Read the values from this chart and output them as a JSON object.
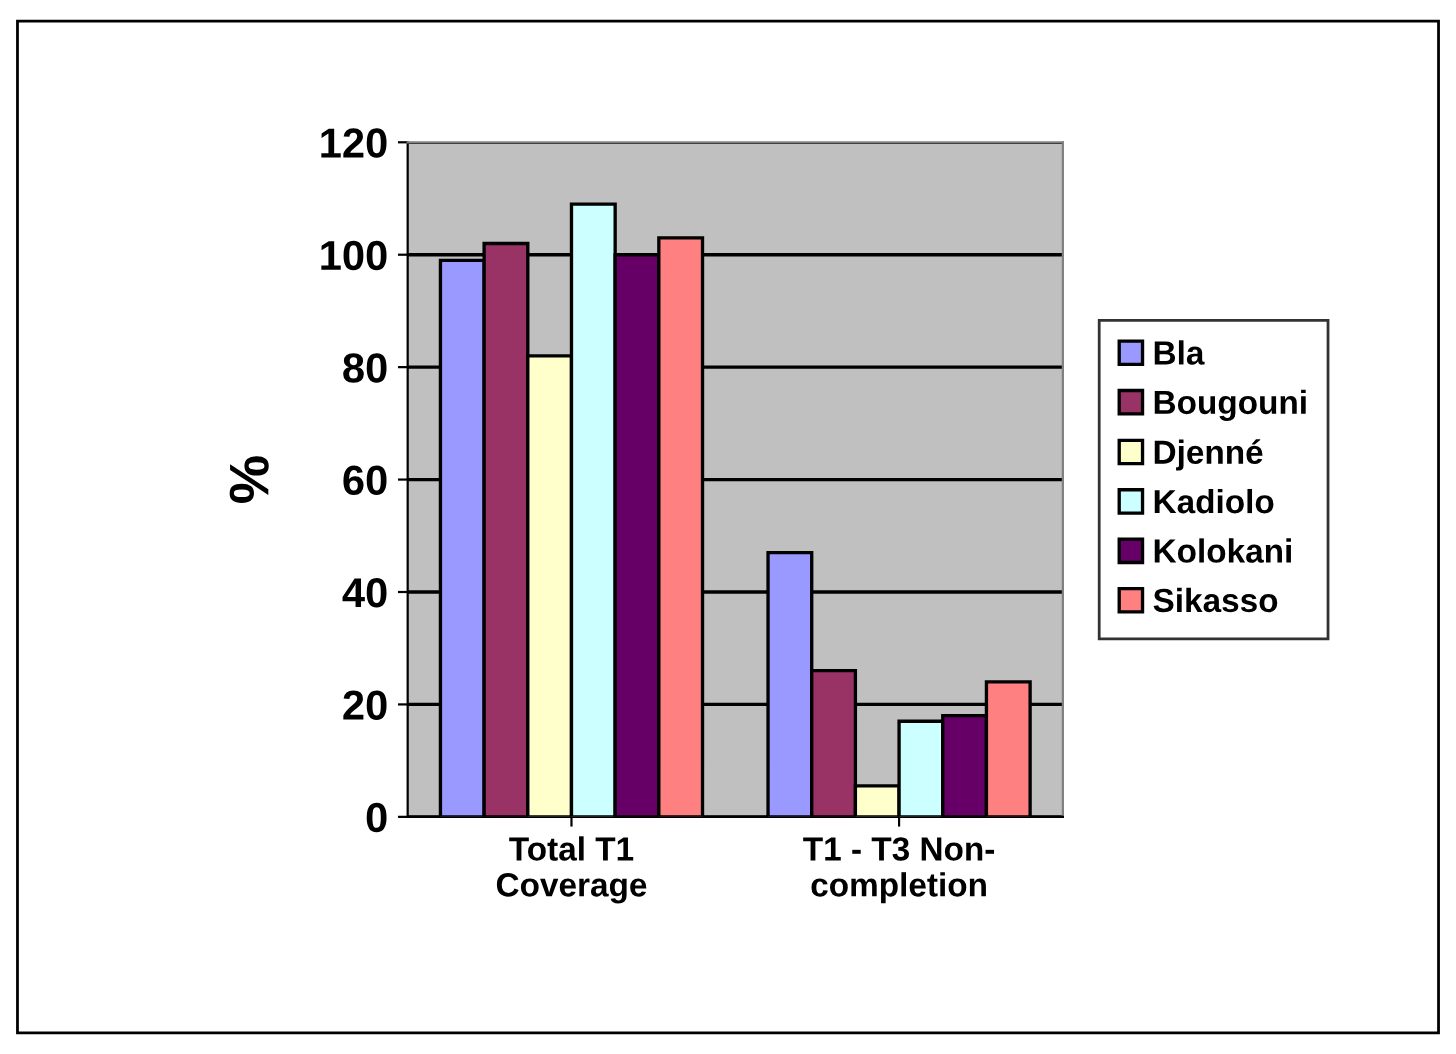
{
  "chart_data": {
    "type": "bar",
    "ylabel": "%",
    "categories": [
      "Total T1\nCoverage",
      "T1 - T3 Non-\ncompletion"
    ],
    "series": [
      {
        "name": "Bla",
        "color": "#9999ff",
        "values": [
          99,
          47
        ]
      },
      {
        "name": "Bougouni",
        "color": "#993366",
        "values": [
          102,
          26
        ]
      },
      {
        "name": "Djenné",
        "color": "#ffffcc",
        "values": [
          82,
          5.5
        ]
      },
      {
        "name": "Kadiolo",
        "color": "#ccffff",
        "values": [
          109,
          17
        ]
      },
      {
        "name": "Kolokani",
        "color": "#660066",
        "values": [
          100,
          18
        ]
      },
      {
        "name": "Sikasso",
        "color": "#ff8080",
        "values": [
          103,
          24
        ]
      }
    ],
    "ylim": [
      0,
      120
    ],
    "yticks": [
      0,
      20,
      40,
      60,
      80,
      100,
      120
    ],
    "grid": "y",
    "legend": "right"
  }
}
